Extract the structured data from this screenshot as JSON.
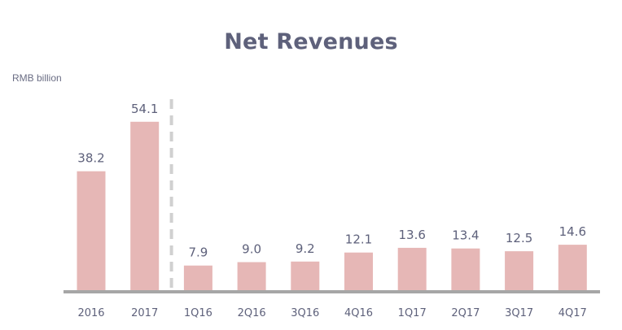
{
  "chart_data": {
    "type": "bar",
    "title": "Net Revenues",
    "ylabel": "RMB billion",
    "xlabel": "",
    "categories": [
      "2016",
      "2017",
      "1Q16",
      "2Q16",
      "3Q16",
      "4Q16",
      "1Q17",
      "2Q17",
      "3Q17",
      "4Q17"
    ],
    "values": [
      38.2,
      54.1,
      7.9,
      9.0,
      9.2,
      12.1,
      13.6,
      13.4,
      12.5,
      14.6
    ],
    "value_labels": [
      "38.2",
      "54.1",
      "7.9",
      "9.0",
      "9.2",
      "12.1",
      "13.6",
      "13.4",
      "12.5",
      "14.6"
    ],
    "ylim": [
      0,
      60
    ],
    "grid": false,
    "separator_after_category": "2017",
    "bar_color": "#e6b7b6",
    "text_color": "#5e617b",
    "axis_color": "#a6a6a6"
  }
}
